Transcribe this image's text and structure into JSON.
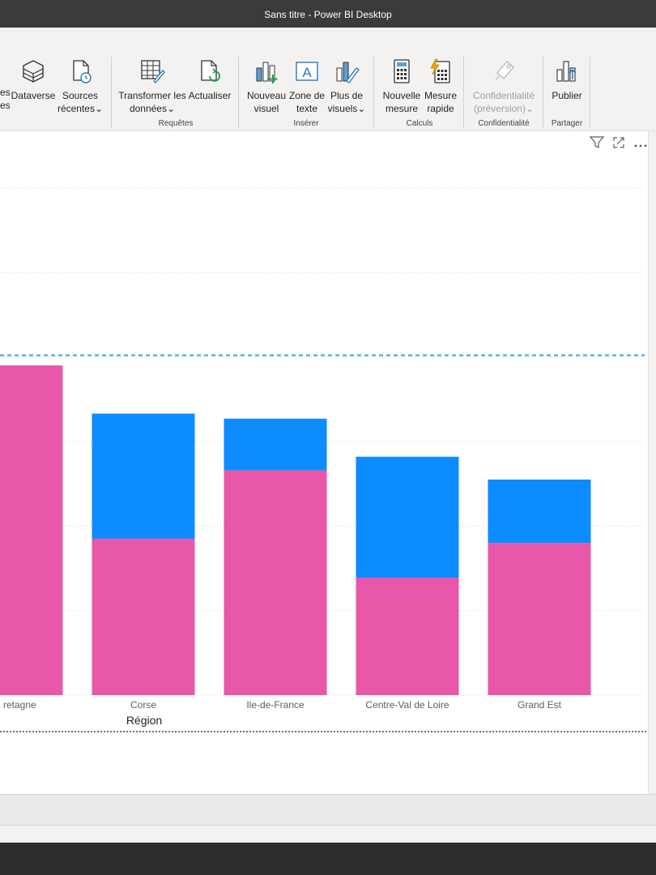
{
  "window": {
    "title": "Sans titre - Power BI Desktop"
  },
  "ribbon": {
    "partial_left_label": "es",
    "partial_left_label2": "es",
    "buttons": {
      "dataverse": {
        "label": "Dataverse"
      },
      "sources_recentes": {
        "line1": "Sources",
        "line2": "récentes"
      },
      "transformer": {
        "line1": "Transformer les",
        "line2": "données"
      },
      "actualiser": {
        "label": "Actualiser"
      },
      "nouveau_visuel": {
        "line1": "Nouveau",
        "line2": "visuel"
      },
      "zone_texte": {
        "line1": "Zone de",
        "line2": "texte"
      },
      "plus_visuels": {
        "line1": "Plus de",
        "line2": "visuels"
      },
      "nouvelle_mesure": {
        "line1": "Nouvelle",
        "line2": "mesure"
      },
      "mesure_rapide": {
        "line1": "Mesure",
        "line2": "rapide"
      },
      "confidentialite": {
        "line1": "Confidentialité",
        "line2": "(préversion)"
      },
      "publier": {
        "label": "Publier"
      }
    },
    "groups": {
      "requetes": "Requêtes",
      "inserer": "Insérer",
      "calculs": "Calculs",
      "confidentialite": "Confidentialité",
      "partager": "Partager"
    },
    "dropdown_glyph": "⌄"
  },
  "visual_header": {
    "filter_icon": "filter-icon",
    "focus_icon": "focus-mode-icon",
    "more_icon": "more-options-icon"
  },
  "chart_data": {
    "type": "bar",
    "stacked": true,
    "xlabel": "Région",
    "categories": [
      "Bretagne",
      "Corse",
      "Ile-de-France",
      "Centre-Val de Loire",
      "Grand Est"
    ],
    "category_labels_shown": [
      "retagne",
      "Corse",
      "Ile-de-France",
      "Centre-Val de Loire",
      "Grand Est"
    ],
    "series": [
      {
        "color": "#E957A9",
        "values": [
          390,
          185,
          266,
          139,
          180
        ]
      },
      {
        "color": "#0C8CFF",
        "values": [
          0,
          148,
          61,
          143,
          75
        ]
      }
    ],
    "ylim": [
      0,
      620
    ],
    "reference_line": {
      "value": 402,
      "color": "#5BB5E8",
      "style": "dashed"
    },
    "grid": true
  }
}
